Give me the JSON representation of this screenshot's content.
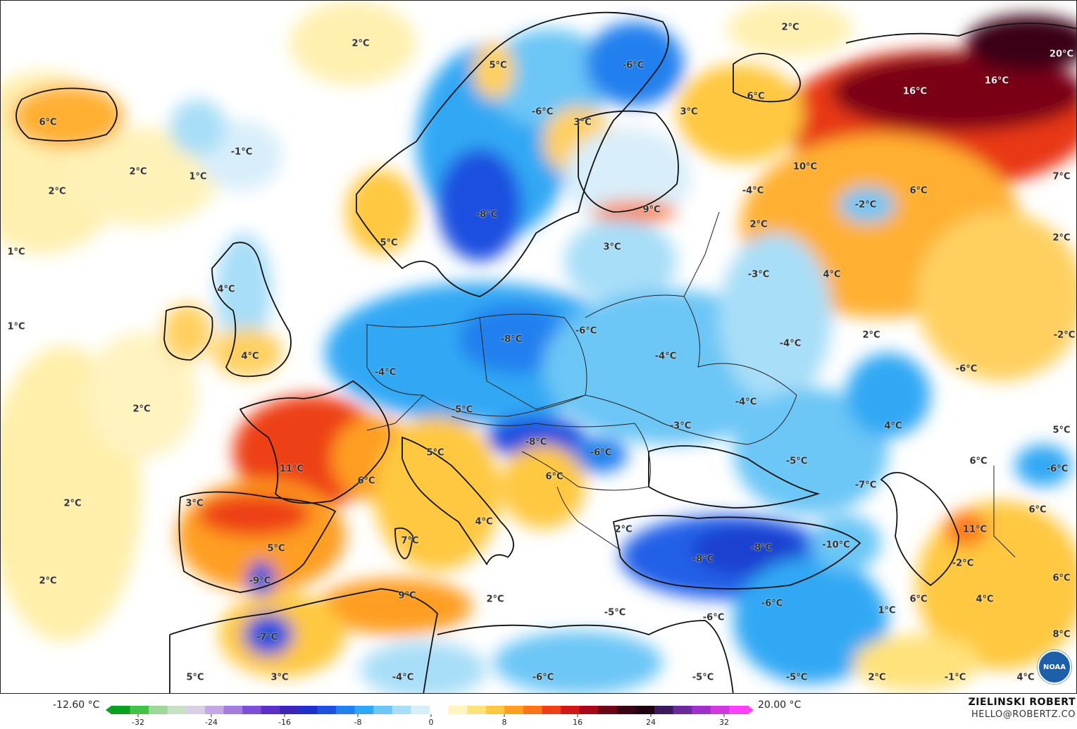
{
  "map": {
    "labels": [
      {
        "id": "l1",
        "text": "2°C"
      },
      {
        "id": "l2",
        "text": "2°C"
      },
      {
        "id": "l3",
        "text": "5°C"
      },
      {
        "id": "l4",
        "text": "-6°C"
      },
      {
        "id": "l5",
        "text": "6°C"
      },
      {
        "id": "l6",
        "text": "-6°C"
      },
      {
        "id": "l7",
        "text": "3°C"
      },
      {
        "id": "l8",
        "text": "3°C"
      },
      {
        "id": "l9",
        "text": "6°C"
      },
      {
        "id": "l10",
        "text": "16°C"
      },
      {
        "id": "l11",
        "text": "16°C"
      },
      {
        "id": "l12",
        "text": "20°C"
      },
      {
        "id": "l13",
        "text": "-1°C"
      },
      {
        "id": "l14",
        "text": "2°C"
      },
      {
        "id": "l15",
        "text": "1°C"
      },
      {
        "id": "l16",
        "text": "2°C"
      },
      {
        "id": "l17",
        "text": "-8°C"
      },
      {
        "id": "l18",
        "text": "9°C"
      },
      {
        "id": "l19",
        "text": "-4°C"
      },
      {
        "id": "l20",
        "text": "10°C"
      },
      {
        "id": "l21",
        "text": "-2°C"
      },
      {
        "id": "l22",
        "text": "6°C"
      },
      {
        "id": "l23",
        "text": "7°C"
      },
      {
        "id": "l24",
        "text": "2°C"
      },
      {
        "id": "l25",
        "text": "5°C"
      },
      {
        "id": "l26",
        "text": "3°C"
      },
      {
        "id": "l27",
        "text": "2°C"
      },
      {
        "id": "l28",
        "text": "1°C"
      },
      {
        "id": "l29",
        "text": "1°C"
      },
      {
        "id": "l30",
        "text": "-3°C"
      },
      {
        "id": "l31",
        "text": "4°C"
      },
      {
        "id": "l32",
        "text": "4°C"
      },
      {
        "id": "l33",
        "text": "-8°C"
      },
      {
        "id": "l34",
        "text": "-6°C"
      },
      {
        "id": "l35",
        "text": "2°C"
      },
      {
        "id": "l36",
        "text": "-2°C"
      },
      {
        "id": "l37",
        "text": "4°C"
      },
      {
        "id": "l38",
        "text": "-4°C"
      },
      {
        "id": "l39",
        "text": "-4°C"
      },
      {
        "id": "l40",
        "text": "-6°C"
      },
      {
        "id": "l41",
        "text": "2°C"
      },
      {
        "id": "l42",
        "text": "-5°C"
      },
      {
        "id": "l43",
        "text": "-4°C"
      },
      {
        "id": "l44",
        "text": "-3°C"
      },
      {
        "id": "l45",
        "text": "-4°C"
      },
      {
        "id": "l46",
        "text": "4°C"
      },
      {
        "id": "l47",
        "text": "5°C"
      },
      {
        "id": "l48",
        "text": "11°C"
      },
      {
        "id": "l49",
        "text": "6°C"
      },
      {
        "id": "l50",
        "text": "5°C"
      },
      {
        "id": "l51",
        "text": "-8°C"
      },
      {
        "id": "l52",
        "text": "-6°C"
      },
      {
        "id": "l53",
        "text": "-5°C"
      },
      {
        "id": "l54",
        "text": "-7°C"
      },
      {
        "id": "l55",
        "text": "6°C"
      },
      {
        "id": "l56",
        "text": "-6°C"
      },
      {
        "id": "l57",
        "text": "6°C"
      },
      {
        "id": "l58",
        "text": "2°C"
      },
      {
        "id": "l59",
        "text": "3°C"
      },
      {
        "id": "l60",
        "text": "5°C"
      },
      {
        "id": "l61",
        "text": "4°C"
      },
      {
        "id": "l62",
        "text": "7°C"
      },
      {
        "id": "l63",
        "text": "2°C"
      },
      {
        "id": "l64",
        "text": "-8°C"
      },
      {
        "id": "l65",
        "text": "-8°C"
      },
      {
        "id": "l66",
        "text": "-10°C"
      },
      {
        "id": "l67",
        "text": "11°C"
      },
      {
        "id": "l68",
        "text": "6°C"
      },
      {
        "id": "l69",
        "text": "2°C"
      },
      {
        "id": "l70",
        "text": "-9°C"
      },
      {
        "id": "l71",
        "text": "9°C"
      },
      {
        "id": "l72",
        "text": "2°C"
      },
      {
        "id": "l73",
        "text": "-5°C"
      },
      {
        "id": "l74",
        "text": "-6°C"
      },
      {
        "id": "l75",
        "text": "-6°C"
      },
      {
        "id": "l76",
        "text": "1°C"
      },
      {
        "id": "l77",
        "text": "6°C"
      },
      {
        "id": "l78",
        "text": "4°C"
      },
      {
        "id": "l79",
        "text": "-2°C"
      },
      {
        "id": "l80",
        "text": "6°C"
      },
      {
        "id": "l81",
        "text": "-7°C"
      },
      {
        "id": "l82",
        "text": "8°C"
      },
      {
        "id": "l83",
        "text": "5°C"
      },
      {
        "id": "l84",
        "text": "3°C"
      },
      {
        "id": "l85",
        "text": "-4°C"
      },
      {
        "id": "l86",
        "text": "-6°C"
      },
      {
        "id": "l87",
        "text": "-5°C"
      },
      {
        "id": "l88",
        "text": "-5°C"
      },
      {
        "id": "l89",
        "text": "2°C"
      },
      {
        "id": "l90",
        "text": "-1°C"
      },
      {
        "id": "l91",
        "text": "4°C"
      }
    ]
  },
  "legend": {
    "min_value": "-12.60 °C",
    "max_value": "20.00 °C",
    "ticks": [
      "-32",
      "-24",
      "-16",
      "-8",
      "0",
      "8",
      "16",
      "24",
      "32"
    ],
    "colors": [
      "#0aa020",
      "#46c24a",
      "#9ed79a",
      "#c8e0c4",
      "#d8cfe6",
      "#c4a8e4",
      "#a57be0",
      "#7c4fd6",
      "#5a30c8",
      "#3a25b8",
      "#2030c8",
      "#1c50e0",
      "#2080ee",
      "#30a8f4",
      "#6cc6f6",
      "#a8def8",
      "#d8eefa",
      "#ffffff",
      "#fff4c0",
      "#ffe27a",
      "#ffc840",
      "#ff9e20",
      "#ff7418",
      "#ee4018",
      "#d01818",
      "#a80818",
      "#6c0418",
      "#3a0214",
      "#200010",
      "#3a1a5c",
      "#6a2a9a",
      "#a030c8",
      "#d038e0",
      "#ff40ff"
    ]
  },
  "credit": {
    "name": "ZIELINSKI ROBERT",
    "email": "HELLO@ROBERTZ.CO"
  },
  "logo": {
    "text": "NOAA"
  }
}
